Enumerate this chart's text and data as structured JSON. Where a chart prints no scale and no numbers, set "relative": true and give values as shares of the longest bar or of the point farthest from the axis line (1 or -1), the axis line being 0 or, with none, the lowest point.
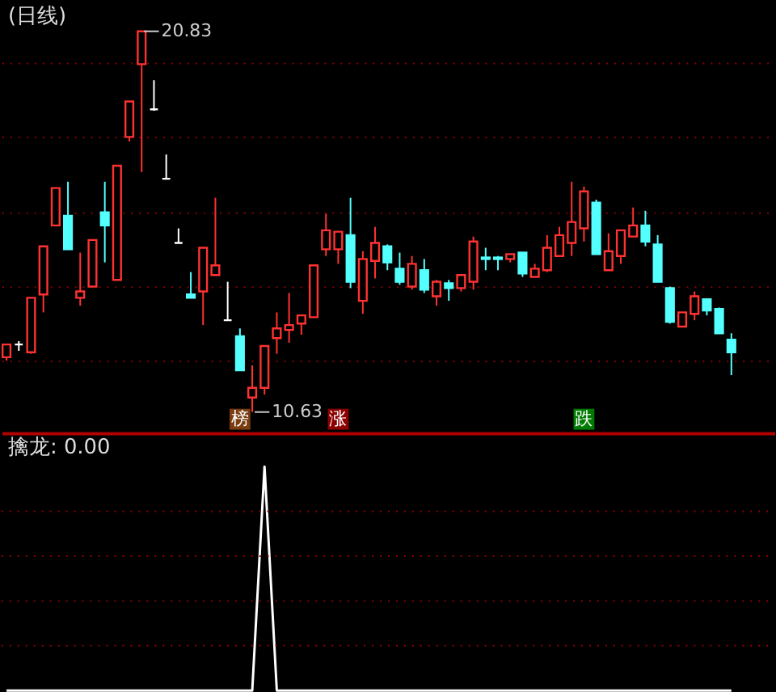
{
  "chart_data": [
    {
      "type": "candlestick",
      "title": "(日线)",
      "categories": [
        null,
        null,
        null,
        null,
        null,
        null,
        null,
        null,
        null,
        null,
        null,
        null,
        null,
        null,
        null,
        null,
        null,
        null,
        null,
        null,
        null,
        null,
        null,
        null,
        null,
        null,
        null,
        null,
        null,
        null,
        null,
        null,
        null,
        null,
        null,
        null,
        null,
        null,
        null,
        null,
        null,
        null,
        null,
        null,
        null,
        null,
        null,
        null,
        null,
        null,
        null,
        null,
        null,
        null,
        null,
        null,
        null,
        null,
        null,
        null
      ],
      "ohlc": [
        [
          12.1,
          12.44,
          12.01,
          12.44
        ],
        [
          12.44,
          12.53,
          12.27,
          12.44
        ],
        [
          12.23,
          13.69,
          12.19,
          13.69
        ],
        [
          13.78,
          15.07,
          13.3,
          15.07
        ],
        [
          15.63,
          16.63,
          15.63,
          16.63
        ],
        [
          15.89,
          16.8,
          14.99,
          14.99
        ],
        [
          13.69,
          14.9,
          13.48,
          13.86
        ],
        [
          13.99,
          15.24,
          13.99,
          15.24
        ],
        [
          15.98,
          16.8,
          14.64,
          15.63
        ],
        [
          14.17,
          17.23,
          14.17,
          17.23
        ],
        [
          18.0,
          18.95,
          17.88,
          18.95
        ],
        [
          19.95,
          20.83,
          17.06,
          20.83
        ],
        [
          18.74,
          19.52,
          18.7,
          18.74
        ],
        [
          16.88,
          17.53,
          16.88,
          16.88
        ],
        [
          15.16,
          15.55,
          15.16,
          15.16
        ],
        [
          13.78,
          14.38,
          13.69,
          13.69
        ],
        [
          13.86,
          15.03,
          12.96,
          15.03
        ],
        [
          14.3,
          16.37,
          14.3,
          14.56
        ],
        [
          13.09,
          14.12,
          13.09,
          13.09
        ],
        [
          12.66,
          12.87,
          11.75,
          11.75
        ],
        [
          11.02,
          11.88,
          10.63,
          11.28
        ],
        [
          11.28,
          12.4,
          11.1,
          12.4
        ],
        [
          12.61,
          13.3,
          12.19,
          12.87
        ],
        [
          12.83,
          13.82,
          12.49,
          12.96
        ],
        [
          13.0,
          13.22,
          12.7,
          13.22
        ],
        [
          13.17,
          14.56,
          13.17,
          14.56
        ],
        [
          14.99,
          15.94,
          14.81,
          15.5
        ],
        [
          14.99,
          15.46,
          14.6,
          15.46
        ],
        [
          15.37,
          16.37,
          13.95,
          14.12
        ],
        [
          13.61,
          14.94,
          13.26,
          14.73
        ],
        [
          14.68,
          15.59,
          14.21,
          15.16
        ],
        [
          15.07,
          15.12,
          14.43,
          14.64
        ],
        [
          14.47,
          14.9,
          14.04,
          14.12
        ],
        [
          13.99,
          14.81,
          13.91,
          14.6
        ],
        [
          14.43,
          14.73,
          13.82,
          13.91
        ],
        [
          13.73,
          14.17,
          13.48,
          14.12
        ],
        [
          14.08,
          14.17,
          13.61,
          13.95
        ],
        [
          13.95,
          14.3,
          13.86,
          14.3
        ],
        [
          14.12,
          15.33,
          13.91,
          15.2
        ],
        [
          14.77,
          15.03,
          14.43,
          14.73
        ],
        [
          14.77,
          14.81,
          14.43,
          14.73
        ],
        [
          14.73,
          14.86,
          14.64,
          14.86
        ],
        [
          14.9,
          14.9,
          14.25,
          14.34
        ],
        [
          14.25,
          14.6,
          14.25,
          14.47
        ],
        [
          14.43,
          15.37,
          14.38,
          15.03
        ],
        [
          14.81,
          15.59,
          14.81,
          15.37
        ],
        [
          15.16,
          16.8,
          14.81,
          15.72
        ],
        [
          15.55,
          16.67,
          15.2,
          16.54
        ],
        [
          16.24,
          16.32,
          14.86,
          14.86
        ],
        [
          14.43,
          15.42,
          14.43,
          14.94
        ],
        [
          14.81,
          15.5,
          14.6,
          15.5
        ],
        [
          15.33,
          16.11,
          15.33,
          15.63
        ],
        [
          15.63,
          16.02,
          15.07,
          15.2
        ],
        [
          15.12,
          15.37,
          14.12,
          14.12
        ],
        [
          13.95,
          13.99,
          13.0,
          13.05
        ],
        [
          12.92,
          13.3,
          12.92,
          13.3
        ],
        [
          13.26,
          13.86,
          13.09,
          13.73
        ],
        [
          13.65,
          13.65,
          13.22,
          13.35
        ],
        [
          13.39,
          13.43,
          12.74,
          12.74
        ],
        [
          12.57,
          12.74,
          11.62,
          12.23
        ]
      ],
      "colors": [
        "#ff3232",
        "#ffffff",
        "#ff3232",
        "#ff3232",
        "#ff3232",
        "#54ffff",
        "#ff3232",
        "#ff3232",
        "#54ffff",
        "#ff3232",
        "#ff3232",
        "#ff3232",
        "#ffffff",
        "#ffffff",
        "#ffffff",
        "#54ffff",
        "#ff3232",
        "#ff3232",
        "#ffffff",
        "#54ffff",
        "#ff3232",
        "#ff3232",
        "#ff3232",
        "#ff3232",
        "#ff3232",
        "#ff3232",
        "#ff3232",
        "#ff3232",
        "#54ffff",
        "#ff3232",
        "#ff3232",
        "#54ffff",
        "#54ffff",
        "#ff3232",
        "#54ffff",
        "#ff3232",
        "#54ffff",
        "#ff3232",
        "#ff3232",
        "#54ffff",
        "#54ffff",
        "#ff3232",
        "#54ffff",
        "#ff3232",
        "#ff3232",
        "#ff3232",
        "#ff3232",
        "#ff3232",
        "#54ffff",
        "#ff3232",
        "#ff3232",
        "#ff3232",
        "#54ffff",
        "#54ffff",
        "#54ffff",
        "#ff3232",
        "#ff3232",
        "#54ffff",
        "#54ffff",
        "#54ffff"
      ],
      "ylim": [
        10.07,
        21.63
      ],
      "yticks": [
        {
          "value": 12,
          "label": null
        },
        {
          "value": 14,
          "label": null
        },
        {
          "value": 16,
          "label": null
        },
        {
          "value": 18,
          "label": null
        },
        {
          "value": 20,
          "label": null
        }
      ],
      "grid": true,
      "tick_labels": false,
      "annotations": [
        "20.83",
        "10.63",
        "榜",
        "涨",
        "跌"
      ]
    },
    {
      "type": "line",
      "title": "擒龙: 0.00",
      "relative": true,
      "tick_labels": false,
      "ref_lines": [
        {
          "axis": "y",
          "value": 0.2,
          "color": "#8b0000",
          "line_style": "dotted"
        },
        {
          "axis": "y",
          "value": 0.4,
          "color": "#8b0000",
          "line_style": "dotted"
        },
        {
          "axis": "y",
          "value": 0.6,
          "color": "#8b0000",
          "line_style": "dotted"
        },
        {
          "axis": "y",
          "value": 0.8,
          "color": "#8b0000",
          "line_style": "dotted"
        }
      ],
      "categories": [
        null,
        null,
        null,
        null,
        null,
        null,
        null,
        null,
        null,
        null,
        null,
        null,
        null,
        null,
        null,
        null,
        null,
        null,
        null,
        null,
        null,
        null,
        null,
        null,
        null,
        null,
        null,
        null,
        null,
        null,
        null,
        null,
        null,
        null,
        null,
        null,
        null,
        null,
        null,
        null,
        null,
        null,
        null,
        null,
        null,
        null,
        null,
        null,
        null,
        null,
        null,
        null,
        null,
        null,
        null,
        null,
        null,
        null,
        null,
        null
      ],
      "series": [
        {
          "color": "#ffffff",
          "values": [
            0,
            0,
            0,
            0,
            0,
            0,
            0,
            0,
            0,
            0,
            0,
            0,
            0,
            0,
            0,
            0,
            0,
            0,
            0,
            0,
            0,
            1,
            0,
            0,
            0,
            0,
            0,
            0,
            0,
            0,
            0,
            0,
            0,
            0,
            0,
            0,
            0,
            0,
            0,
            0,
            0,
            0,
            0,
            0,
            0,
            0,
            0,
            0,
            0,
            0,
            0,
            0,
            0,
            0,
            0,
            0,
            0,
            0,
            0,
            0
          ]
        }
      ]
    }
  ]
}
